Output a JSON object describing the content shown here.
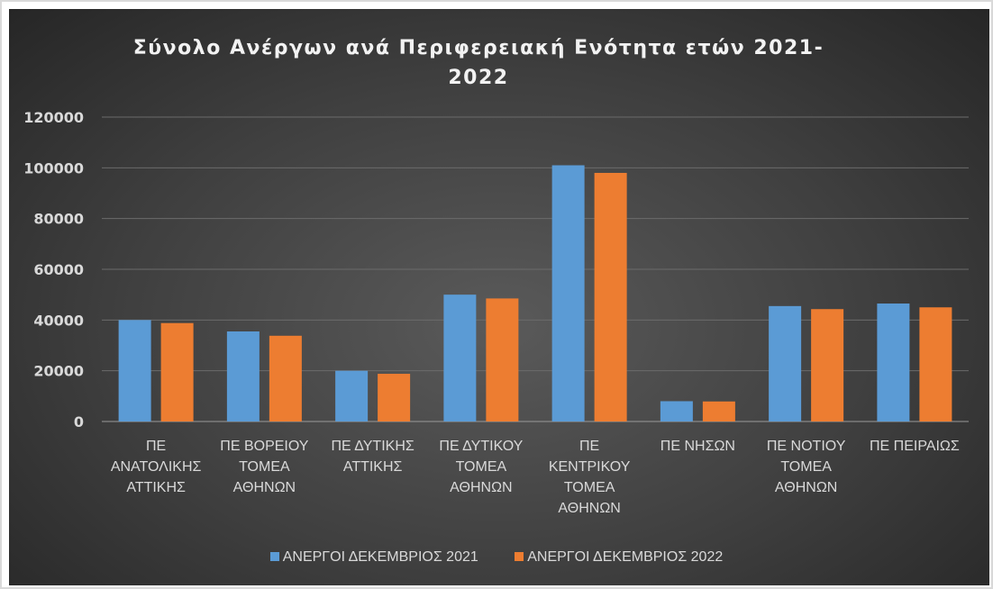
{
  "colors": {
    "series1": "#5b9bd5",
    "series2": "#ed7d31",
    "grid": "#6b6b6b",
    "axis": "#9a9a9a"
  },
  "chart_data": {
    "type": "bar",
    "title": "Σύνολο Ανέργων ανά Περιφερειακή  Ενότητα ετών 2021-\n2022",
    "xlabel": "",
    "ylabel": "",
    "ylim": [
      0,
      120000
    ],
    "yticks": [
      "0",
      "20000",
      "40000",
      "60000",
      "80000",
      "100000",
      "120000"
    ],
    "grid": true,
    "legend_position": "bottom",
    "categories": [
      "ΠΕ ΑΝΑΤΟΛΙΚΗΣ ΑΤΤΙΚΗΣ",
      "ΠΕ ΒΟΡΕΙΟΥ ΤΟΜΕΑ ΑΘΗΝΩΝ",
      "ΠΕ ΔΥΤΙΚΗΣ ΑΤΤΙΚΗΣ",
      "ΠΕ ΔΥΤΙΚΟΥ ΤΟΜΕΑ ΑΘΗΝΩΝ",
      "ΠΕ ΚΕΝΤΡΙΚΟΥ ΤΟΜΕΑ ΑΘΗΝΩΝ",
      "ΠΕ ΝΗΣΩΝ",
      "ΠΕ ΝΟΤΙΟΥ ΤΟΜΕΑ ΑΘΗΝΩΝ",
      "ΠΕ ΠΕΙΡΑΙΩΣ"
    ],
    "category_lines": [
      [
        "ΠΕ",
        "ΑΝΑΤΟΛΙΚΗΣ",
        "ΑΤΤΙΚΗΣ"
      ],
      [
        "ΠΕ ΒΟΡΕΙΟΥ",
        "ΤΟΜΕΑ",
        "ΑΘΗΝΩΝ"
      ],
      [
        "ΠΕ ΔΥΤΙΚΗΣ",
        "ΑΤΤΙΚΗΣ"
      ],
      [
        "ΠΕ ΔΥΤΙΚΟΥ",
        "ΤΟΜΕΑ",
        "ΑΘΗΝΩΝ"
      ],
      [
        "ΠΕ",
        "ΚΕΝΤΡΙΚΟΥ",
        "ΤΟΜΕΑ",
        "ΑΘΗΝΩΝ"
      ],
      [
        "ΠΕ ΝΗΣΩΝ"
      ],
      [
        "ΠΕ ΝΟΤΙΟΥ",
        "ΤΟΜΕΑ",
        "ΑΘΗΝΩΝ"
      ],
      [
        "ΠΕ ΠΕΙΡΑΙΩΣ"
      ]
    ],
    "series": [
      {
        "name": "ΑΝΕΡΓΟΙ ΔΕΚΕΜΒΡΙΟΣ 2021",
        "values": [
          40000,
          35500,
          20000,
          50000,
          101000,
          8000,
          45500,
          46500
        ]
      },
      {
        "name": "ΑΝΕΡΓΟΙ ΔΕΚΕΜΒΡΙΟΣ 2022",
        "values": [
          38800,
          33800,
          18800,
          48500,
          98000,
          7900,
          44300,
          45000
        ]
      }
    ]
  }
}
